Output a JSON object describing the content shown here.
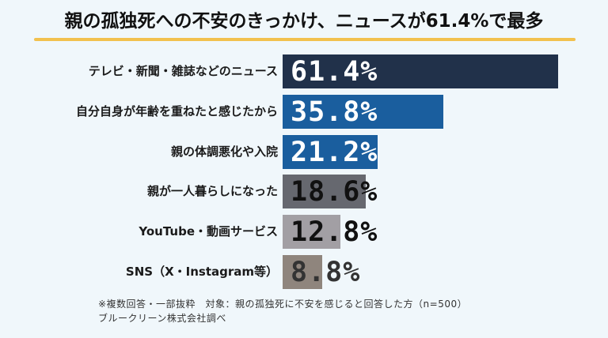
{
  "title": "親の孤独死への不安のきっかけ、ニュースが61.4%で最多",
  "colors": {
    "background": "#F0F7FB",
    "title_underline": "#F2C14E",
    "bar_1": "#21314A",
    "bar_2": "#1A5E9E",
    "bar_3": "#1A5E9E",
    "bar_4": "#66686F",
    "bar_5": "#A29FA4",
    "bar_6": "#8F857D"
  },
  "rows": [
    {
      "label": "テレビ・新聞・雑誌などのニュース",
      "value_text": "61.4%",
      "value": 61.4
    },
    {
      "label": "自分自身が年齢を重ねたと感じたから",
      "value_text": "35.8%",
      "value": 35.8
    },
    {
      "label": "親の体調悪化や入院",
      "value_text": "21.2%",
      "value": 21.2
    },
    {
      "label": "親が一人暮らしになった",
      "value_text": "18.6%",
      "value": 18.6
    },
    {
      "label": "YouTube・動画サービス",
      "value_text": "12.8%",
      "value": 12.8
    },
    {
      "label": "SNS（X・Instagram等）",
      "value_text": "8.8%",
      "value": 8.8
    }
  ],
  "footnote": {
    "line1": "※複数回答・一部抜粋　対象：親の孤独死に不安を感じると回答した方（n=500）",
    "line2": "ブルークリーン株式会社調べ"
  },
  "chart_data": {
    "type": "bar",
    "orientation": "horizontal",
    "title": "親の孤独死への不安のきっかけ、ニュースが61.4%で最多",
    "categories": [
      "テレビ・新聞・雑誌などのニュース",
      "自分自身が年齢を重ねたと感じたから",
      "親の体調悪化や入院",
      "親が一人暮らしになった",
      "YouTube・動画サービス",
      "SNS（X・Instagram等）"
    ],
    "values": [
      61.4,
      35.8,
      21.2,
      18.6,
      12.8,
      8.8
    ],
    "unit": "%",
    "xlabel": "",
    "ylabel": "",
    "grid": false,
    "legend": null,
    "annotations": [
      "※複数回答・一部抜粋　対象：親の孤独死に不安を感じると回答した方（n=500）",
      "ブルークリーン株式会社調べ"
    ]
  }
}
